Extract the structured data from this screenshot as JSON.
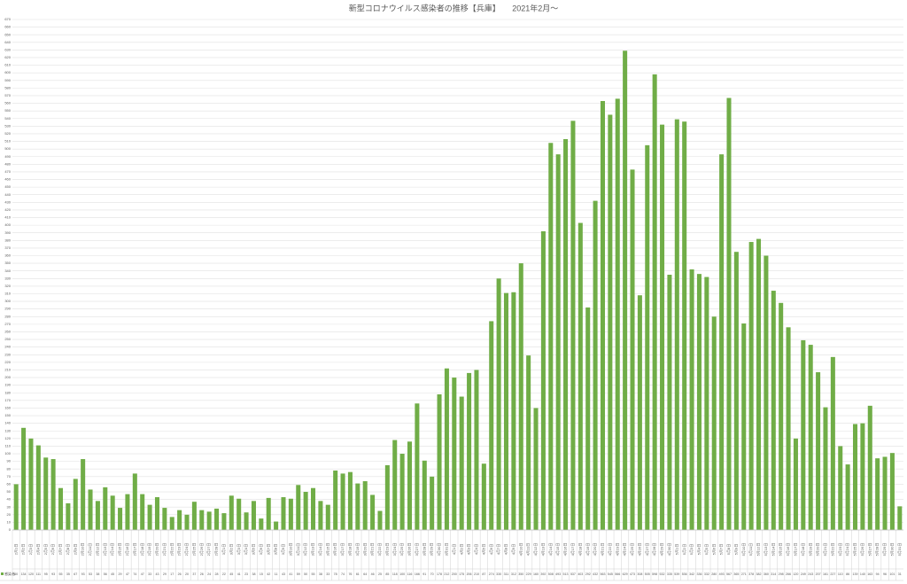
{
  "chart_data": {
    "type": "bar",
    "title": "新型コロナウイルス感染者の推移【兵庫】　　2021年2月～",
    "categories": [
      "2月1日",
      "2月2日",
      "2月3日",
      "2月4日",
      "2月5日",
      "2月6日",
      "2月7日",
      "2月8日",
      "2月9日",
      "2月10日",
      "2月11日",
      "2月12日",
      "2月13日",
      "2月14日",
      "2月15日",
      "2月16日",
      "2月17日",
      "2月18日",
      "2月19日",
      "2月20日",
      "2月21日",
      "2月22日",
      "2月23日",
      "2月24日",
      "2月25日",
      "2月26日",
      "2月27日",
      "2月28日",
      "3月1日",
      "3月2日",
      "3月3日",
      "3月4日",
      "3月5日",
      "3月6日",
      "3月7日",
      "3月8日",
      "3月9日",
      "3月10日",
      "3月11日",
      "3月12日",
      "3月13日",
      "3月14日",
      "3月15日",
      "3月16日",
      "3月17日",
      "3月18日",
      "3月19日",
      "3月20日",
      "3月21日",
      "3月22日",
      "3月23日",
      "3月24日",
      "3月25日",
      "3月26日",
      "3月27日",
      "3月28日",
      "3月29日",
      "3月30日",
      "3月31日",
      "4月1日",
      "4月2日",
      "4月3日",
      "4月4日",
      "4月5日",
      "4月6日",
      "4月7日",
      "4月8日",
      "4月9日",
      "4月10日",
      "4月11日",
      "4月12日",
      "4月13日",
      "4月14日",
      "4月15日",
      "4月16日",
      "4月17日",
      "4月18日",
      "4月19日",
      "4月20日",
      "4月21日",
      "4月22日",
      "4月23日",
      "4月24日",
      "4月25日",
      "4月26日",
      "4月27日",
      "4月28日",
      "4月29日",
      "4月30日",
      "5月1日",
      "5月2日",
      "5月3日",
      "5月4日",
      "5月5日",
      "5月6日",
      "5月7日",
      "5月8日",
      "5月9日",
      "5月10日",
      "5月11日",
      "5月12日",
      "5月13日",
      "5月14日",
      "5月15日",
      "5月16日",
      "5月17日",
      "5月18日",
      "5月19日",
      "5月20日",
      "5月21日",
      "5月22日",
      "5月23日",
      "5月24日",
      "5月25日",
      "5月26日",
      "5月27日",
      "5月28日",
      "5月29日",
      "5月30日",
      "5月31日"
    ],
    "series": [
      {
        "name": "感染者",
        "color": "#70ad47",
        "values": [
          60,
          134,
          120,
          111,
          95,
          93,
          55,
          35,
          67,
          93,
          53,
          38,
          56,
          45,
          29,
          47,
          74,
          47,
          33,
          43,
          29,
          17,
          26,
          20,
          37,
          26,
          24,
          28,
          22,
          45,
          41,
          23,
          38,
          15,
          42,
          11,
          43,
          41,
          59,
          50,
          55,
          38,
          33,
          78,
          74,
          76,
          61,
          64,
          46,
          25,
          85,
          118,
          100,
          116,
          166,
          91,
          70,
          178,
          212,
          200,
          175,
          206,
          210,
          87,
          274,
          330,
          311,
          312,
          350,
          229,
          160,
          392,
          508,
          493,
          513,
          537,
          403,
          292,
          432,
          563,
          545,
          566,
          629,
          473,
          308,
          505,
          598,
          532,
          335,
          539,
          536,
          342,
          336,
          332,
          280,
          493,
          567,
          365,
          271,
          378,
          382,
          360,
          314,
          298,
          266,
          120,
          249,
          243,
          207,
          161,
          227,
          110,
          86,
          139,
          140,
          163,
          94,
          96,
          101,
          31
        ]
      }
    ],
    "ylim": [
      0,
      670
    ],
    "yticks": [
      0,
      10,
      20,
      30,
      40,
      50,
      60,
      70,
      80,
      90,
      100,
      110,
      120,
      130,
      140,
      150,
      160,
      170,
      180,
      190,
      200,
      210,
      220,
      230,
      240,
      250,
      260,
      270,
      280,
      290,
      300,
      310,
      320,
      330,
      340,
      350,
      360,
      370,
      380,
      390,
      400,
      410,
      420,
      430,
      440,
      450,
      460,
      470,
      480,
      490,
      500,
      510,
      520,
      530,
      540,
      550,
      560,
      570,
      580,
      590,
      600,
      610,
      620,
      630,
      640,
      650,
      660,
      670
    ],
    "grid": true
  }
}
